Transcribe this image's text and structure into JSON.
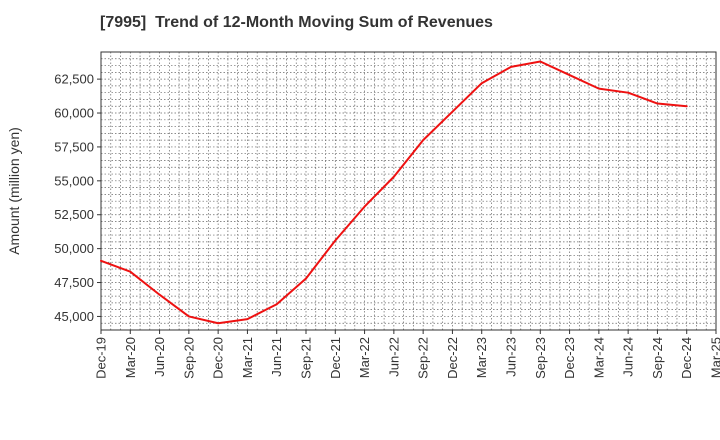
{
  "chart_data": {
    "type": "line",
    "title": "[7995]  Trend of 12-Month Moving Sum of Revenues",
    "ylabel": "Amount (million yen)",
    "xlabel": "",
    "ylim": [
      44000,
      64500
    ],
    "y_ticks": [
      45000,
      47500,
      50000,
      52500,
      55000,
      57500,
      60000,
      62500
    ],
    "y_tick_labels": [
      "45,000",
      "47,500",
      "50,000",
      "52,500",
      "55,000",
      "57,500",
      "60,000",
      "62,500"
    ],
    "x_tick_labels": [
      "Dec-19",
      "Mar-20",
      "Jun-20",
      "Sep-20",
      "Dec-20",
      "Mar-21",
      "Jun-21",
      "Sep-21",
      "Dec-21",
      "Mar-22",
      "Jun-22",
      "Sep-22",
      "Dec-22",
      "Mar-23",
      "Jun-23",
      "Sep-23",
      "Dec-23",
      "Mar-24",
      "Jun-24",
      "Sep-24",
      "Dec-24",
      "Mar-25"
    ],
    "grid": true,
    "series": [
      {
        "color": "#ee1111",
        "x": [
          "Dec-19",
          "Mar-20",
          "Jun-20",
          "Sep-20",
          "Dec-20",
          "Mar-21",
          "Jun-21",
          "Sep-21",
          "Dec-21",
          "Mar-22",
          "Jun-22",
          "Sep-22",
          "Dec-22",
          "Mar-23",
          "Jun-23",
          "Sep-23",
          "Dec-23",
          "Mar-24",
          "Jun-24",
          "Sep-24",
          "Dec-24"
        ],
        "values": [
          49100,
          48300,
          46600,
          45000,
          44500,
          44800,
          45900,
          47800,
          50600,
          53100,
          55300,
          58000,
          60100,
          62200,
          63400,
          63800,
          62800,
          61800,
          61500,
          60700,
          60500
        ]
      }
    ]
  }
}
